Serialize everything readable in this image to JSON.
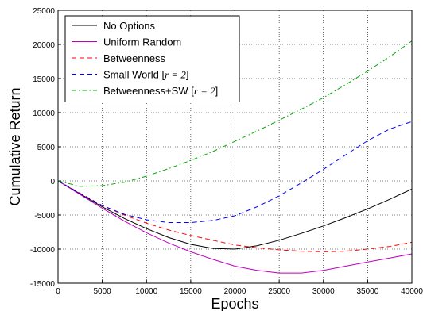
{
  "chart_data": {
    "type": "line",
    "xlabel": "Epochs",
    "ylabel": "Cumulative Return",
    "xlim": [
      0,
      40000
    ],
    "ylim": [
      -15000,
      25000
    ],
    "xticks": [
      "0",
      "5000",
      "10000",
      "15000",
      "20000",
      "25000",
      "30000",
      "35000",
      "40000"
    ],
    "yticks": [
      "-15000",
      "-10000",
      "-5000",
      "0",
      "5000",
      "10000",
      "15000",
      "20000",
      "25000"
    ],
    "grid": true,
    "legend_position": "top-left",
    "x": [
      0,
      2500,
      5000,
      7500,
      10000,
      12500,
      15000,
      17500,
      20000,
      22500,
      25000,
      27500,
      30000,
      32500,
      35000,
      37500,
      40000
    ],
    "series": [
      {
        "name": "No Options",
        "color": "#000000",
        "dash": "solid",
        "values": [
          0,
          -1900,
          -3800,
          -5500,
          -7000,
          -8300,
          -9300,
          -9900,
          -10000,
          -9500,
          -8700,
          -7700,
          -6600,
          -5400,
          -4100,
          -2700,
          -1200
        ]
      },
      {
        "name": "Uniform Random",
        "color": "#bf00bf",
        "dash": "solid",
        "values": [
          0,
          -2000,
          -4000,
          -5900,
          -7600,
          -9100,
          -10400,
          -11500,
          -12500,
          -13100,
          -13500,
          -13500,
          -13100,
          -12500,
          -11900,
          -11300,
          -10700
        ]
      },
      {
        "name": "Betweenness",
        "color": "#ff0000",
        "dash": "dashed",
        "values": [
          0,
          -1800,
          -3600,
          -5000,
          -6200,
          -7200,
          -8000,
          -8700,
          -9400,
          -9800,
          -10100,
          -10300,
          -10400,
          -10300,
          -10000,
          -9600,
          -9000
        ]
      },
      {
        "name": "Small World [",
        "name_var": "r = 2",
        "name_end": "]",
        "color": "#0000ff",
        "dash": "dashed",
        "values": [
          0,
          -1900,
          -3600,
          -4900,
          -5700,
          -6100,
          -6100,
          -5800,
          -5100,
          -3800,
          -2200,
          -300,
          1700,
          3800,
          5900,
          7600,
          8700
        ]
      },
      {
        "name": "Betweenness+SW [",
        "name_var": "r = 2",
        "name_end": "]",
        "color": "#00aa00",
        "dash": "dashdot",
        "values": [
          0,
          -800,
          -700,
          -200,
          700,
          1800,
          3000,
          4300,
          5800,
          7300,
          8900,
          10500,
          12200,
          14100,
          16100,
          18200,
          20500
        ]
      }
    ]
  }
}
